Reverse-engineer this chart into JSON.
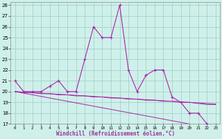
{
  "xlabel": "Windchill (Refroidissement éolien,°C)",
  "hours": [
    0,
    1,
    2,
    3,
    4,
    5,
    6,
    7,
    8,
    9,
    10,
    11,
    12,
    13,
    14,
    15,
    16,
    17,
    18,
    19,
    20,
    21,
    22,
    23
  ],
  "main_line": [
    21,
    20,
    20,
    20,
    20.5,
    21,
    20,
    20,
    23,
    26,
    25,
    25,
    28,
    22,
    20,
    21.5,
    22,
    22,
    19.5,
    19,
    18,
    18,
    17,
    16.8
  ],
  "reg_line1": [
    20,
    19.9,
    19.9,
    19.8,
    19.8,
    19.7,
    19.7,
    19.6,
    19.6,
    19.5,
    19.5,
    19.4,
    19.4,
    19.3,
    19.3,
    19.2,
    19.2,
    19.1,
    19.1,
    19.0,
    19.0,
    18.9,
    18.8,
    18.8
  ],
  "reg_line2": [
    20,
    19.85,
    19.7,
    19.55,
    19.4,
    19.25,
    19.1,
    18.95,
    18.8,
    18.65,
    18.5,
    18.35,
    18.2,
    18.05,
    17.9,
    17.75,
    17.6,
    17.45,
    17.3,
    17.15,
    17.0,
    16.85,
    16.7,
    16.55
  ],
  "reg_line3": [
    20,
    19.95,
    19.9,
    19.85,
    19.8,
    19.75,
    19.7,
    19.65,
    19.6,
    19.55,
    19.5,
    19.45,
    19.4,
    19.35,
    19.3,
    19.25,
    19.2,
    19.15,
    19.1,
    19.05,
    19.0,
    18.95,
    18.9,
    18.85
  ],
  "ylim_min": 17,
  "ylim_max": 28,
  "bg_color": "#cff0ea",
  "grid_color": "#99ccc4",
  "line_color": "#aa22aa",
  "xlabel_color": "#993399"
}
